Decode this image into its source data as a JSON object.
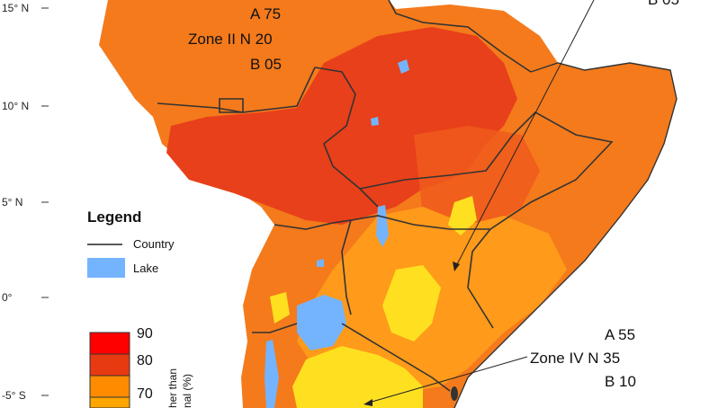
{
  "lat_labels": [
    "15° N",
    "10° N",
    "5° N",
    "0°",
    "-5° S"
  ],
  "zones": {
    "top_left": {
      "a": "A 75",
      "zone_n": "Zone II N 20",
      "b": "B 05"
    },
    "top_right": {
      "b": "B 05"
    },
    "bottom_right": {
      "a": "A 55",
      "zone_n": "Zone IV N 35",
      "b": "B 10"
    }
  },
  "legend": {
    "title": "Legend",
    "country_label": "Country",
    "lake_label": "Lake"
  },
  "scale": {
    "values": [
      "90",
      "80",
      "70"
    ],
    "colors": [
      "#ff0000",
      "#e83a10",
      "#ff8c00"
    ],
    "axis_label": "her than\nnal (%)"
  },
  "colors": {
    "deep_red": "#e8401a",
    "red_orange": "#ef5a1c",
    "orange": "#f57f17",
    "light_orange": "#ff9a1a",
    "yellow": "#ffe020",
    "lake": "#74b4ff",
    "border": "#333333"
  }
}
